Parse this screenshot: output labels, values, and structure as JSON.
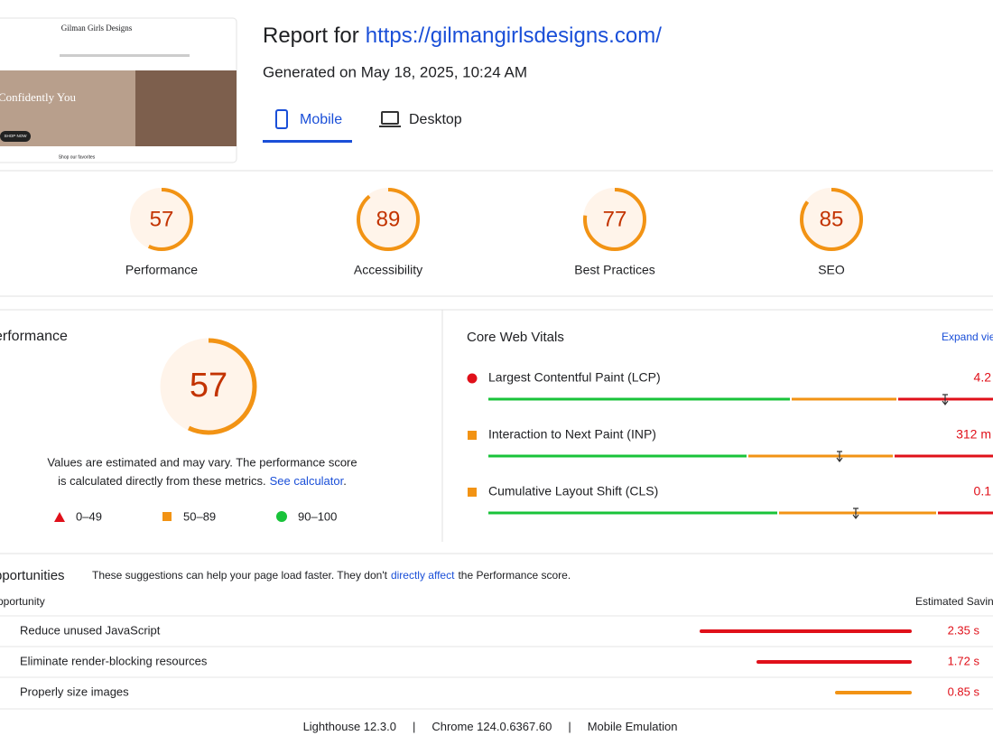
{
  "header": {
    "report_prefix": "Report for",
    "url": "https://gilmangirlsdesigns.com/",
    "generated": "Generated on May 18, 2025, 10:24 AM",
    "tabs": [
      "Mobile",
      "Desktop"
    ]
  },
  "thumbnail": {
    "brand": "Gilman Girls Designs",
    "hero": "Confidently You",
    "button": "SHOP NOW",
    "footer": "Shop our favorites"
  },
  "scores": [
    {
      "label": "Performance",
      "score": 57
    },
    {
      "label": "Accessibility",
      "score": 89
    },
    {
      "label": "Best Practices",
      "score": 77
    },
    {
      "label": "SEO",
      "score": 85
    }
  ],
  "performance": {
    "title": "erformance",
    "score": 57,
    "note_line1": "Values are estimated and may vary. The performance score",
    "note_line2": "is calculated directly from these metrics.",
    "link": "See calculator",
    "note_end": ".",
    "legend": [
      "0–49",
      "50–89",
      "90–100"
    ]
  },
  "core_web_vitals": {
    "title": "Core Web Vitals",
    "expand": "Expand vie",
    "metrics": [
      {
        "name": "Largest Contentful Paint (LCP)",
        "value": "4.2",
        "color": "#e0101a"
      },
      {
        "name": "Interaction to Next Paint (INP)",
        "value": "312 m",
        "color": "#f29314"
      },
      {
        "name": "Cumulative Layout Shift (CLS)",
        "value": "0.1",
        "color": "#f29314"
      }
    ]
  },
  "opportunities": {
    "title": "pportunities",
    "description": "These suggestions can help your page load faster. They don't",
    "link": "directly affect",
    "description_end": "the Performance score.",
    "col_opportunity": "pportunity",
    "col_savings": "Estimated Savin",
    "rows": [
      {
        "name": "Reduce unused JavaScript",
        "savings": 2.35,
        "savings_label": "2.35 s",
        "color": "#e0101a"
      },
      {
        "name": "Eliminate render-blocking resources",
        "savings": 1.72,
        "savings_label": "1.72 s",
        "color": "#e0101a"
      },
      {
        "name": "Properly size images",
        "savings": 0.85,
        "savings_label": "0.85 s",
        "color": "#f29314"
      }
    ]
  },
  "footer": [
    "Lighthouse 12.3.0",
    "Chrome 124.0.6367.60",
    "Mobile Emulation"
  ]
}
